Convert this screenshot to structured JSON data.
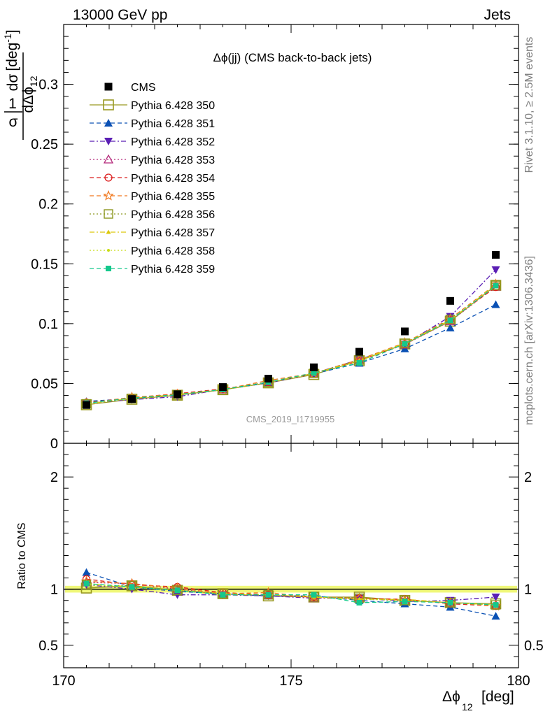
{
  "header": {
    "left": "13000 GeV pp",
    "right": "Jets"
  },
  "side_labels": {
    "rivet": "Rivet 3.1.10, ≥ 2.5M events",
    "mcplots": "mcplots.cern.ch [arXiv:1306.3436]"
  },
  "watermark": "CMS_2019_I1719955",
  "chart_data": [
    {
      "type": "scatter",
      "title": "Δϕ(jj) (CMS back-to-back jets)",
      "xlabel": "Δϕ_12 [deg]",
      "ylabel": "1/σ dσ/dΔϕ_12 [deg^-1]",
      "xlim": [
        170,
        180
      ],
      "ylim": [
        0,
        0.35
      ],
      "x": [
        170.5,
        171.5,
        172.5,
        173.5,
        174.5,
        175.5,
        176.5,
        177.5,
        178.5,
        179.5
      ],
      "ytick_labels": [
        "0",
        "0.05",
        "0.1",
        "0.15",
        "0.2",
        "0.25",
        "0.3"
      ],
      "xtick_labels": [
        "170",
        "175",
        "180"
      ],
      "legend_position": "top-left",
      "series": [
        {
          "name": "CMS",
          "color": "#000000",
          "marker": "square-filled",
          "line": "none",
          "values": [
            0.032,
            0.037,
            0.041,
            0.047,
            0.054,
            0.0635,
            0.0765,
            0.0935,
            0.119,
            0.1575
          ]
        },
        {
          "name": "Pythia 6.428 350",
          "color": "#999922",
          "marker": "square-open-big",
          "line": "solid",
          "values": [
            0.0322,
            0.0368,
            0.0402,
            0.0448,
            0.0505,
            0.0575,
            0.069,
            0.083,
            0.102,
            0.132
          ]
        },
        {
          "name": "Pythia 6.428 351",
          "color": "#0a50b4",
          "marker": "triangle-up-filled",
          "line": "dashed",
          "values": [
            0.035,
            0.0375,
            0.0405,
            0.045,
            0.0505,
            0.058,
            0.067,
            0.079,
            0.0965,
            0.116
          ]
        },
        {
          "name": "Pythia 6.428 352",
          "color": "#5a1eb4",
          "marker": "triangle-down-filled",
          "line": "dashdot",
          "values": [
            0.0335,
            0.0365,
            0.039,
            0.045,
            0.051,
            0.0585,
            0.07,
            0.083,
            0.106,
            0.145
          ]
        },
        {
          "name": "Pythia 6.428 353",
          "color": "#b4287a",
          "marker": "triangle-up-open",
          "line": "dotted",
          "values": [
            0.033,
            0.038,
            0.041,
            0.045,
            0.0505,
            0.058,
            0.069,
            0.0825,
            0.102,
            0.131
          ]
        },
        {
          "name": "Pythia 6.428 354",
          "color": "#dc1e1e",
          "marker": "circle-open",
          "line": "dashed",
          "values": [
            0.034,
            0.038,
            0.0415,
            0.0455,
            0.051,
            0.058,
            0.069,
            0.083,
            0.103,
            0.1305
          ]
        },
        {
          "name": "Pythia 6.428 355",
          "color": "#f0781e",
          "marker": "star-open",
          "line": "dashed",
          "values": [
            0.0335,
            0.0385,
            0.041,
            0.045,
            0.0525,
            0.0585,
            0.07,
            0.084,
            0.104,
            0.133
          ]
        },
        {
          "name": "Pythia 6.428 356",
          "color": "#8c961e",
          "marker": "square-open",
          "line": "dotted",
          "values": [
            0.033,
            0.0375,
            0.0405,
            0.0445,
            0.051,
            0.0585,
            0.0695,
            0.0835,
            0.1035,
            0.132
          ]
        },
        {
          "name": "Pythia 6.428 357",
          "color": "#dcc80a",
          "marker": "tri-small",
          "line": "dashdot",
          "values": [
            0.033,
            0.0375,
            0.0408,
            0.0448,
            0.0512,
            0.0583,
            0.0693,
            0.0836,
            0.103,
            0.1325
          ]
        },
        {
          "name": "Pythia 6.428 358",
          "color": "#c8dc14",
          "marker": "dot-small",
          "line": "dotted",
          "values": [
            0.0332,
            0.0373,
            0.0404,
            0.0447,
            0.0508,
            0.0581,
            0.0688,
            0.0829,
            0.1025,
            0.1315
          ]
        },
        {
          "name": "Pythia 6.428 359",
          "color": "#14c88c",
          "marker": "square-small",
          "line": "dashed",
          "values": [
            0.0335,
            0.0378,
            0.0406,
            0.045,
            0.0511,
            0.0588,
            0.0672,
            0.0832,
            0.1028,
            0.1318
          ]
        }
      ]
    },
    {
      "type": "scatter",
      "title": "",
      "xlabel": "Δϕ_12 [deg]",
      "ylabel": "Ratio to CMS",
      "xlim": [
        170,
        180
      ],
      "ylim": [
        0.3,
        2.3
      ],
      "x": [
        170.5,
        171.5,
        172.5,
        173.5,
        174.5,
        175.5,
        176.5,
        177.5,
        178.5,
        179.5
      ],
      "ytick_labels": [
        "0.5",
        "1",
        "2"
      ],
      "reference_line": 1,
      "uncertainty_band": {
        "lower": 0.97,
        "upper": 1.03,
        "color": "#eef76a"
      },
      "series": [
        {
          "name": "Pythia 6.428 350",
          "values": [
            1.01,
            1.03,
            0.99,
            0.96,
            0.94,
            0.93,
            0.93,
            0.9,
            0.88,
            0.87
          ]
        },
        {
          "name": "Pythia 6.428 351",
          "values": [
            1.15,
            1.02,
            0.98,
            0.96,
            0.94,
            0.94,
            0.9,
            0.87,
            0.84,
            0.76
          ]
        },
        {
          "name": "Pythia 6.428 352",
          "values": [
            1.04,
            1.0,
            0.95,
            0.95,
            0.94,
            0.92,
            0.92,
            0.89,
            0.9,
            0.93
          ]
        },
        {
          "name": "Pythia 6.428 353",
          "values": [
            1.06,
            1.05,
            1.0,
            0.96,
            0.95,
            0.92,
            0.92,
            0.9,
            0.88,
            0.86
          ]
        },
        {
          "name": "Pythia 6.428 354",
          "values": [
            1.09,
            1.04,
            1.02,
            0.97,
            0.95,
            0.93,
            0.92,
            0.91,
            0.87,
            0.85
          ]
        },
        {
          "name": "Pythia 6.428 355",
          "values": [
            1.07,
            1.05,
            1.01,
            0.96,
            0.97,
            0.93,
            0.92,
            0.9,
            0.88,
            0.85
          ]
        },
        {
          "name": "Pythia 6.428 356",
          "values": [
            1.04,
            1.03,
            0.99,
            0.96,
            0.95,
            0.93,
            0.92,
            0.9,
            0.88,
            0.86
          ]
        },
        {
          "name": "Pythia 6.428 357",
          "values": [
            1.05,
            1.02,
            0.99,
            0.95,
            0.95,
            0.93,
            0.91,
            0.91,
            0.88,
            0.86
          ]
        },
        {
          "name": "Pythia 6.428 358",
          "values": [
            1.04,
            1.02,
            0.99,
            0.96,
            0.95,
            0.93,
            0.91,
            0.9,
            0.88,
            0.86
          ]
        },
        {
          "name": "Pythia 6.428 359",
          "values": [
            1.05,
            1.02,
            0.99,
            0.95,
            0.95,
            0.95,
            0.88,
            0.89,
            0.88,
            0.86
          ]
        }
      ]
    }
  ]
}
